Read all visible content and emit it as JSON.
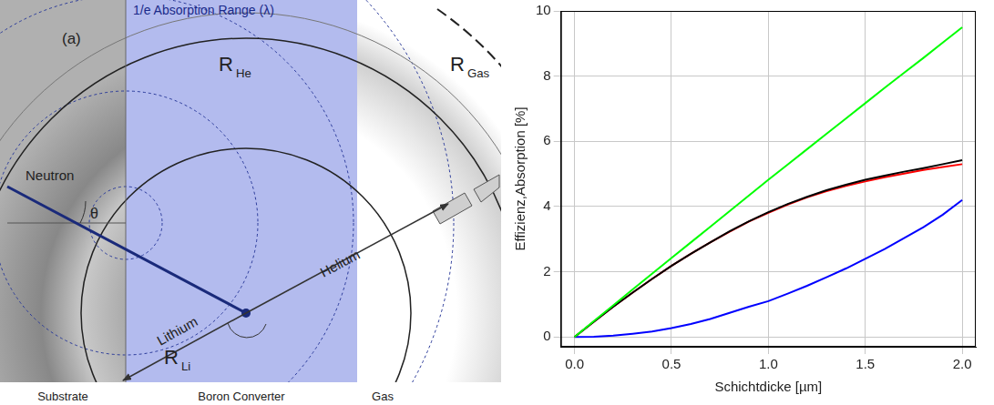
{
  "diagram": {
    "panel_label": "(a)",
    "top_label": "1/e Absorption Range (λ)",
    "radii": [
      {
        "main": "R",
        "sub": "He"
      },
      {
        "main": "R",
        "sub": "Gas"
      },
      {
        "main": "R",
        "sub": "Li"
      }
    ],
    "particles": {
      "neutron": "Neutron",
      "angle": "θ",
      "lithium": "Lithium",
      "helium": "Helium"
    },
    "regions": [
      "Substrate",
      "Boron Converter",
      "Gas"
    ]
  },
  "chart_data": {
    "type": "line",
    "xlabel": "Schichtdicke [µm]",
    "ylabel": "Effizienz,Absorption [%]",
    "x": [
      0,
      0.1,
      0.2,
      0.3,
      0.4,
      0.5,
      0.6,
      0.7,
      0.8,
      0.9,
      1.0,
      1.1,
      1.2,
      1.3,
      1.4,
      1.5,
      1.6,
      1.7,
      1.8,
      1.9,
      2.0
    ],
    "series": [
      {
        "color": "#00ff00",
        "values": [
          0,
          0.49,
          0.97,
          1.46,
          1.94,
          2.42,
          2.9,
          3.38,
          3.86,
          4.34,
          4.82,
          5.29,
          5.76,
          6.23,
          6.7,
          7.17,
          7.64,
          8.1,
          8.56,
          9.03,
          9.5
        ]
      },
      {
        "color": "#000000",
        "values": [
          0,
          0.47,
          0.93,
          1.36,
          1.78,
          2.18,
          2.55,
          2.9,
          3.24,
          3.55,
          3.83,
          4.08,
          4.3,
          4.5,
          4.67,
          4.82,
          4.95,
          5.07,
          5.18,
          5.3,
          5.42
        ]
      },
      {
        "color": "#ff0000",
        "values": [
          0,
          0.47,
          0.93,
          1.36,
          1.78,
          2.18,
          2.55,
          2.9,
          3.23,
          3.54,
          3.81,
          4.06,
          4.28,
          4.47,
          4.63,
          4.77,
          4.9,
          5.01,
          5.12,
          5.21,
          5.3
        ]
      },
      {
        "color": "#0000ff",
        "values": [
          0,
          0.01,
          0.04,
          0.1,
          0.17,
          0.27,
          0.4,
          0.55,
          0.74,
          0.93,
          1.1,
          1.33,
          1.57,
          1.83,
          2.1,
          2.4,
          2.7,
          3.03,
          3.37,
          3.75,
          4.2
        ]
      }
    ],
    "xlim": [
      -0.07,
      2.07
    ],
    "ylim": [
      -0.3,
      10
    ],
    "xticks": [
      {
        "value": 0,
        "label": "0.0"
      },
      {
        "value": 0.5,
        "label": "0.5"
      },
      {
        "value": 1,
        "label": "1.0"
      },
      {
        "value": 1.5,
        "label": "1.5"
      },
      {
        "value": 2,
        "label": "2.0"
      }
    ],
    "yticks": [
      0,
      2,
      4,
      6,
      8,
      10
    ],
    "grid": true
  }
}
